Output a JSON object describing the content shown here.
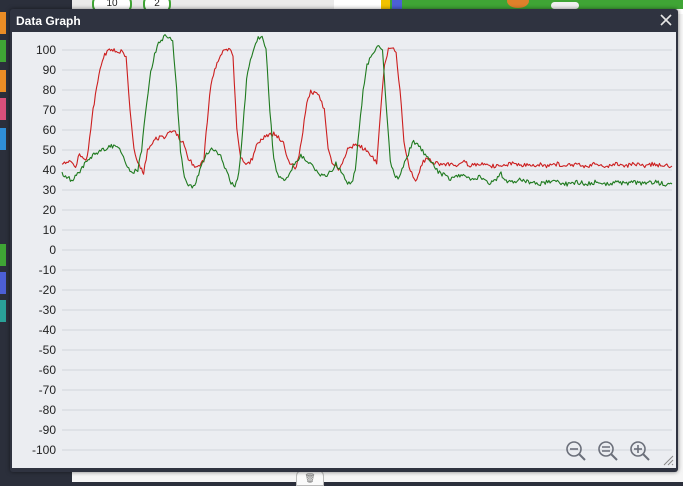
{
  "window": {
    "title": "Data Graph",
    "close_icon": "close-icon"
  },
  "background": {
    "pill_1": "10",
    "pill_2": "2",
    "trash_icon": "trash-icon",
    "palette_colors": [
      "#e98c25",
      "#3fa535",
      "#e98c25",
      "#d94f7a",
      "#2f8fd8",
      "#3fa535",
      "#4c5fd6",
      "#2aa198"
    ]
  },
  "controls": {
    "zoom_out_icon": "zoom-out-icon",
    "zoom_reset_icon": "zoom-reset-icon",
    "zoom_in_icon": "zoom-in-icon",
    "resize_icon": "resize-grip-icon"
  },
  "colors": {
    "red_series": "#cc1f1f",
    "green_series": "#1f7a1f",
    "plot_bg": "#ebedf1",
    "grid": "#d2d5dc",
    "dialog": "#2f3340"
  },
  "chart_data": {
    "type": "line",
    "title": "",
    "xlabel": "",
    "ylabel": "",
    "ylim": [
      -100,
      100
    ],
    "ytick_step": 10,
    "yticks": [
      "100",
      "90",
      "80",
      "70",
      "60",
      "50",
      "40",
      "30",
      "20",
      "10",
      "0",
      "-10",
      "-20",
      "-30",
      "-40",
      "-50",
      "-60",
      "-70",
      "-80",
      "-90",
      "-100"
    ],
    "grid": true,
    "x_unlabeled": true,
    "x_count": 200,
    "series": [
      {
        "color": "#cc1f1f",
        "values_anchors": [
          [
            0,
            44
          ],
          [
            5,
            44
          ],
          [
            7,
            42
          ],
          [
            9,
            48
          ],
          [
            11,
            45
          ],
          [
            13,
            46
          ],
          [
            16,
            70
          ],
          [
            19,
            88
          ],
          [
            22,
            98
          ],
          [
            25,
            100
          ],
          [
            28,
            100
          ],
          [
            31,
            99
          ],
          [
            33,
            97
          ],
          [
            35,
            70
          ],
          [
            37,
            50
          ],
          [
            39,
            43
          ],
          [
            41,
            40
          ],
          [
            42,
            38
          ],
          [
            44,
            50
          ],
          [
            46,
            53
          ],
          [
            49,
            56
          ],
          [
            52,
            56
          ],
          [
            55,
            58
          ],
          [
            57,
            60
          ],
          [
            59,
            58
          ],
          [
            61,
            55
          ],
          [
            63,
            53
          ],
          [
            65,
            46
          ],
          [
            67,
            43
          ],
          [
            69,
            42
          ],
          [
            71,
            42
          ],
          [
            73,
            45
          ],
          [
            76,
            78
          ],
          [
            78,
            88
          ],
          [
            81,
            96
          ],
          [
            84,
            101
          ],
          [
            87,
            100
          ],
          [
            88,
            97
          ],
          [
            90,
            60
          ],
          [
            92,
            46
          ],
          [
            94,
            43
          ],
          [
            96,
            43
          ],
          [
            98,
            46
          ],
          [
            100,
            53
          ],
          [
            103,
            56
          ],
          [
            106,
            57
          ],
          [
            109,
            58
          ],
          [
            112,
            56
          ],
          [
            114,
            54
          ],
          [
            116,
            46
          ],
          [
            118,
            43
          ],
          [
            120,
            41
          ],
          [
            122,
            46
          ],
          [
            124,
            60
          ],
          [
            126,
            74
          ],
          [
            128,
            79
          ],
          [
            131,
            78
          ],
          [
            133,
            76
          ],
          [
            135,
            70
          ],
          [
            137,
            50
          ],
          [
            139,
            44
          ],
          [
            141,
            42
          ],
          [
            143,
            40
          ],
          [
            145,
            45
          ],
          [
            147,
            50
          ],
          [
            150,
            52
          ],
          [
            153,
            52
          ],
          [
            156,
            50
          ],
          [
            158,
            49
          ],
          [
            160,
            46
          ],
          [
            162,
            44
          ],
          [
            164,
            70
          ],
          [
            166,
            92
          ],
          [
            168,
            101
          ],
          [
            170,
            102
          ],
          [
            172,
            98
          ],
          [
            174,
            80
          ],
          [
            176,
            55
          ],
          [
            178,
            44
          ],
          [
            180,
            38
          ],
          [
            182,
            34
          ],
          [
            184,
            40
          ],
          [
            186,
            44
          ],
          [
            188,
            46
          ],
          [
            190,
            44
          ],
          [
            195,
            43
          ],
          [
            200,
            43
          ],
          [
            203,
            42
          ],
          [
            207,
            44
          ],
          [
            210,
            42
          ],
          [
            215,
            43
          ],
          [
            220,
            42
          ],
          [
            225,
            42
          ],
          [
            230,
            43
          ],
          [
            235,
            43
          ],
          [
            240,
            42
          ],
          [
            245,
            43
          ],
          [
            250,
            42
          ],
          [
            255,
            43
          ],
          [
            260,
            42
          ],
          [
            265,
            43
          ],
          [
            270,
            42
          ],
          [
            275,
            43
          ],
          [
            280,
            42
          ],
          [
            285,
            43
          ],
          [
            290,
            42
          ],
          [
            295,
            43
          ],
          [
            300,
            42
          ],
          [
            305,
            43
          ],
          [
            310,
            42
          ],
          [
            314,
            42
          ]
        ]
      },
      {
        "color": "#1f7a1f",
        "values_anchors": [
          [
            0,
            38
          ],
          [
            3,
            36
          ],
          [
            5,
            35
          ],
          [
            8,
            38
          ],
          [
            11,
            42
          ],
          [
            14,
            46
          ],
          [
            17,
            48
          ],
          [
            20,
            50
          ],
          [
            23,
            51
          ],
          [
            26,
            52
          ],
          [
            29,
            51
          ],
          [
            31,
            48
          ],
          [
            33,
            43
          ],
          [
            35,
            40
          ],
          [
            37,
            39
          ],
          [
            39,
            40
          ],
          [
            41,
            50
          ],
          [
            43,
            68
          ],
          [
            45,
            85
          ],
          [
            47,
            95
          ],
          [
            49,
            102
          ],
          [
            51,
            105
          ],
          [
            53,
            107
          ],
          [
            55,
            106
          ],
          [
            57,
            104
          ],
          [
            59,
            80
          ],
          [
            61,
            50
          ],
          [
            63,
            37
          ],
          [
            65,
            33
          ],
          [
            67,
            31
          ],
          [
            69,
            34
          ],
          [
            71,
            40
          ],
          [
            73,
            45
          ],
          [
            75,
            49
          ],
          [
            77,
            51
          ],
          [
            79,
            50
          ],
          [
            81,
            48
          ],
          [
            83,
            44
          ],
          [
            85,
            38
          ],
          [
            87,
            34
          ],
          [
            89,
            32
          ],
          [
            91,
            38
          ],
          [
            93,
            60
          ],
          [
            95,
            85
          ],
          [
            97,
            95
          ],
          [
            99,
            102
          ],
          [
            101,
            106
          ],
          [
            103,
            107
          ],
          [
            105,
            100
          ],
          [
            107,
            70
          ],
          [
            109,
            45
          ],
          [
            111,
            38
          ],
          [
            113,
            35
          ],
          [
            115,
            36
          ],
          [
            117,
            38
          ],
          [
            119,
            42
          ],
          [
            121,
            45
          ],
          [
            123,
            47
          ],
          [
            125,
            46
          ],
          [
            127,
            44
          ],
          [
            129,
            42
          ],
          [
            131,
            40
          ],
          [
            133,
            38
          ],
          [
            135,
            37
          ],
          [
            137,
            38
          ],
          [
            139,
            40
          ],
          [
            141,
            43
          ],
          [
            143,
            40
          ],
          [
            145,
            37
          ],
          [
            147,
            34
          ],
          [
            149,
            33
          ],
          [
            151,
            40
          ],
          [
            153,
            60
          ],
          [
            155,
            80
          ],
          [
            157,
            92
          ],
          [
            159,
            97
          ],
          [
            161,
            100
          ],
          [
            163,
            102
          ],
          [
            165,
            100
          ],
          [
            167,
            70
          ],
          [
            169,
            45
          ],
          [
            171,
            37
          ],
          [
            173,
            36
          ],
          [
            175,
            40
          ],
          [
            177,
            45
          ],
          [
            179,
            50
          ],
          [
            181,
            54
          ],
          [
            183,
            53
          ],
          [
            185,
            50
          ],
          [
            187,
            48
          ],
          [
            189,
            46
          ],
          [
            191,
            43
          ],
          [
            193,
            40
          ],
          [
            195,
            38
          ],
          [
            198,
            37
          ],
          [
            200,
            35
          ],
          [
            203,
            37
          ],
          [
            206,
            38
          ],
          [
            209,
            36
          ],
          [
            212,
            35
          ],
          [
            215,
            37
          ],
          [
            218,
            34
          ],
          [
            220,
            33
          ],
          [
            223,
            35
          ],
          [
            226,
            38
          ],
          [
            228,
            35
          ],
          [
            231,
            34
          ],
          [
            235,
            35
          ],
          [
            240,
            34
          ],
          [
            245,
            33
          ],
          [
            250,
            34
          ],
          [
            255,
            34
          ],
          [
            260,
            33
          ],
          [
            265,
            34
          ],
          [
            270,
            33
          ],
          [
            275,
            34
          ],
          [
            280,
            33
          ],
          [
            285,
            34
          ],
          [
            290,
            33
          ],
          [
            295,
            34
          ],
          [
            300,
            33
          ],
          [
            305,
            34
          ],
          [
            310,
            33
          ],
          [
            314,
            33
          ]
        ]
      }
    ]
  }
}
